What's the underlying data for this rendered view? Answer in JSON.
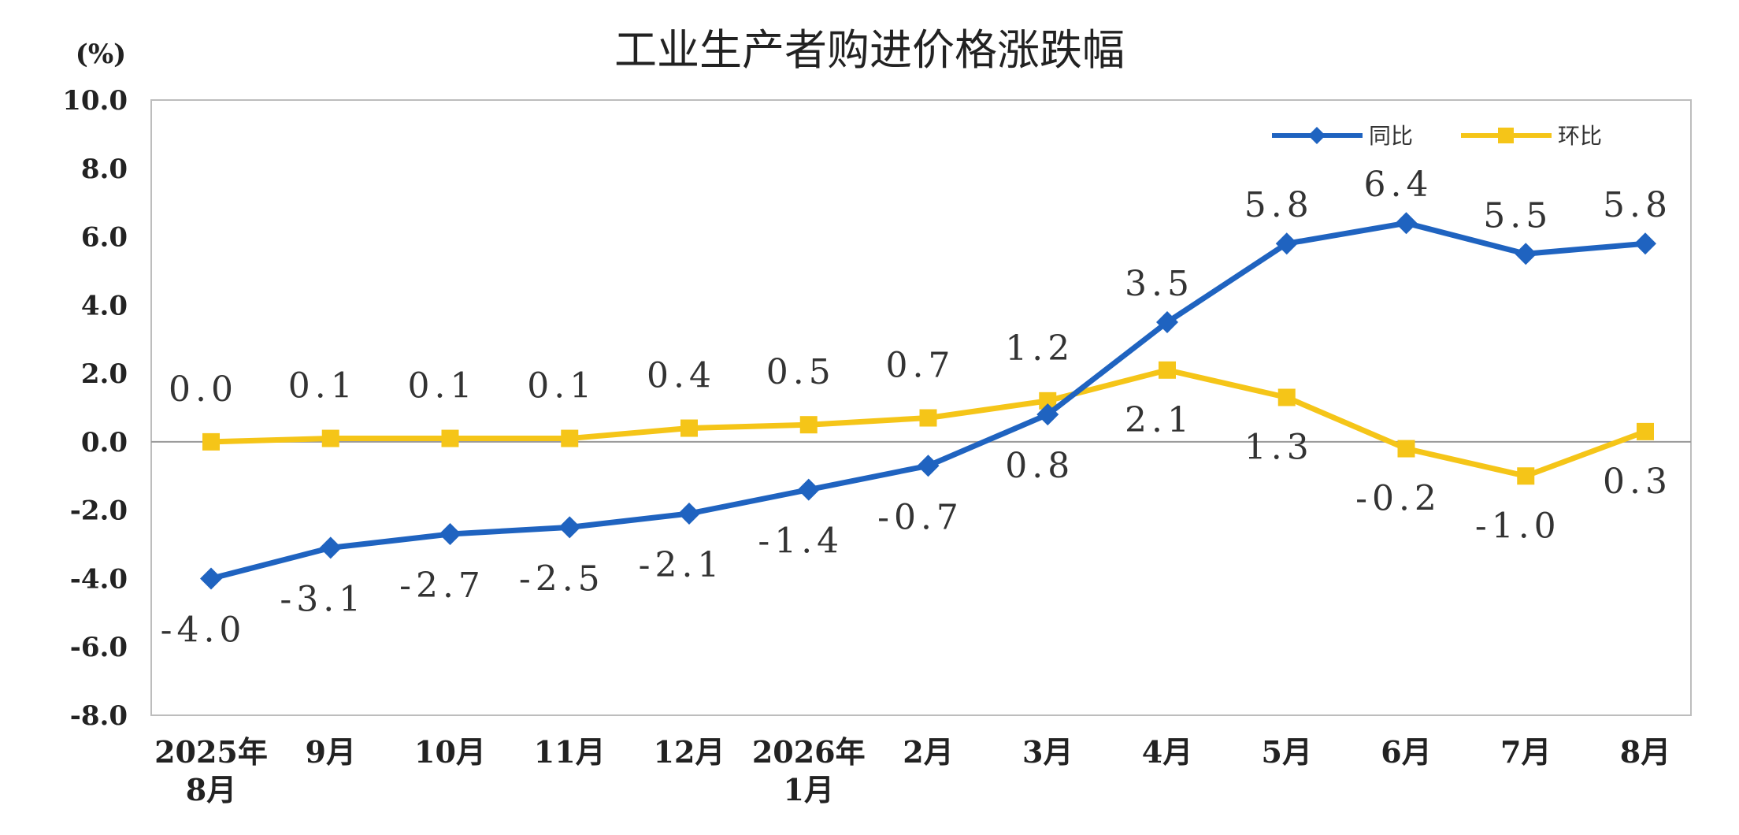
{
  "chart_data": {
    "type": "line",
    "title": "工业生产者购进价格涨跌幅",
    "ylabel": "(%)",
    "ylim": [
      -8.0,
      10.0
    ],
    "yticks": [
      "10.0",
      "8.0",
      "6.0",
      "4.0",
      "2.0",
      "0.0",
      "-2.0",
      "-4.0",
      "-6.0",
      "-8.0"
    ],
    "ytick_values": [
      10,
      8,
      6,
      4,
      2,
      0,
      -2,
      -4,
      -6,
      -8
    ],
    "categories": [
      [
        "2025年",
        "8月"
      ],
      [
        "9月"
      ],
      [
        "10月"
      ],
      [
        "11月"
      ],
      [
        "12月"
      ],
      [
        "2026年",
        "1月"
      ],
      [
        "2月"
      ],
      [
        "3月"
      ],
      [
        "4月"
      ],
      [
        "5月"
      ],
      [
        "6月"
      ],
      [
        "7月"
      ],
      [
        "8月"
      ]
    ],
    "series": [
      {
        "name": "同比",
        "color": "#1f63c0",
        "marker": "diamond",
        "values": [
          -4.0,
          -3.1,
          -2.7,
          -2.5,
          -2.1,
          -1.4,
          -0.7,
          0.8,
          3.5,
          5.8,
          6.4,
          5.5,
          5.8
        ],
        "labels": [
          "-4.0",
          "-3.1",
          "-2.7",
          "-2.5",
          "-2.1",
          "-1.4",
          "-0.7",
          "0.8",
          "3.5",
          "5.8",
          "6.4",
          "5.5",
          "5.8"
        ]
      },
      {
        "name": "环比",
        "color": "#f5c518",
        "marker": "square",
        "values": [
          0.0,
          0.1,
          0.1,
          0.1,
          0.4,
          0.5,
          0.7,
          1.2,
          2.1,
          1.3,
          -0.2,
          -1.0,
          0.3
        ],
        "labels": [
          "0.0",
          "0.1",
          "0.1",
          "0.1",
          "0.4",
          "0.5",
          "0.7",
          "1.2",
          "2.1",
          "1.3",
          "-0.2",
          "-1.0",
          "0.3"
        ]
      }
    ],
    "grid": false,
    "legend": "top-right"
  }
}
